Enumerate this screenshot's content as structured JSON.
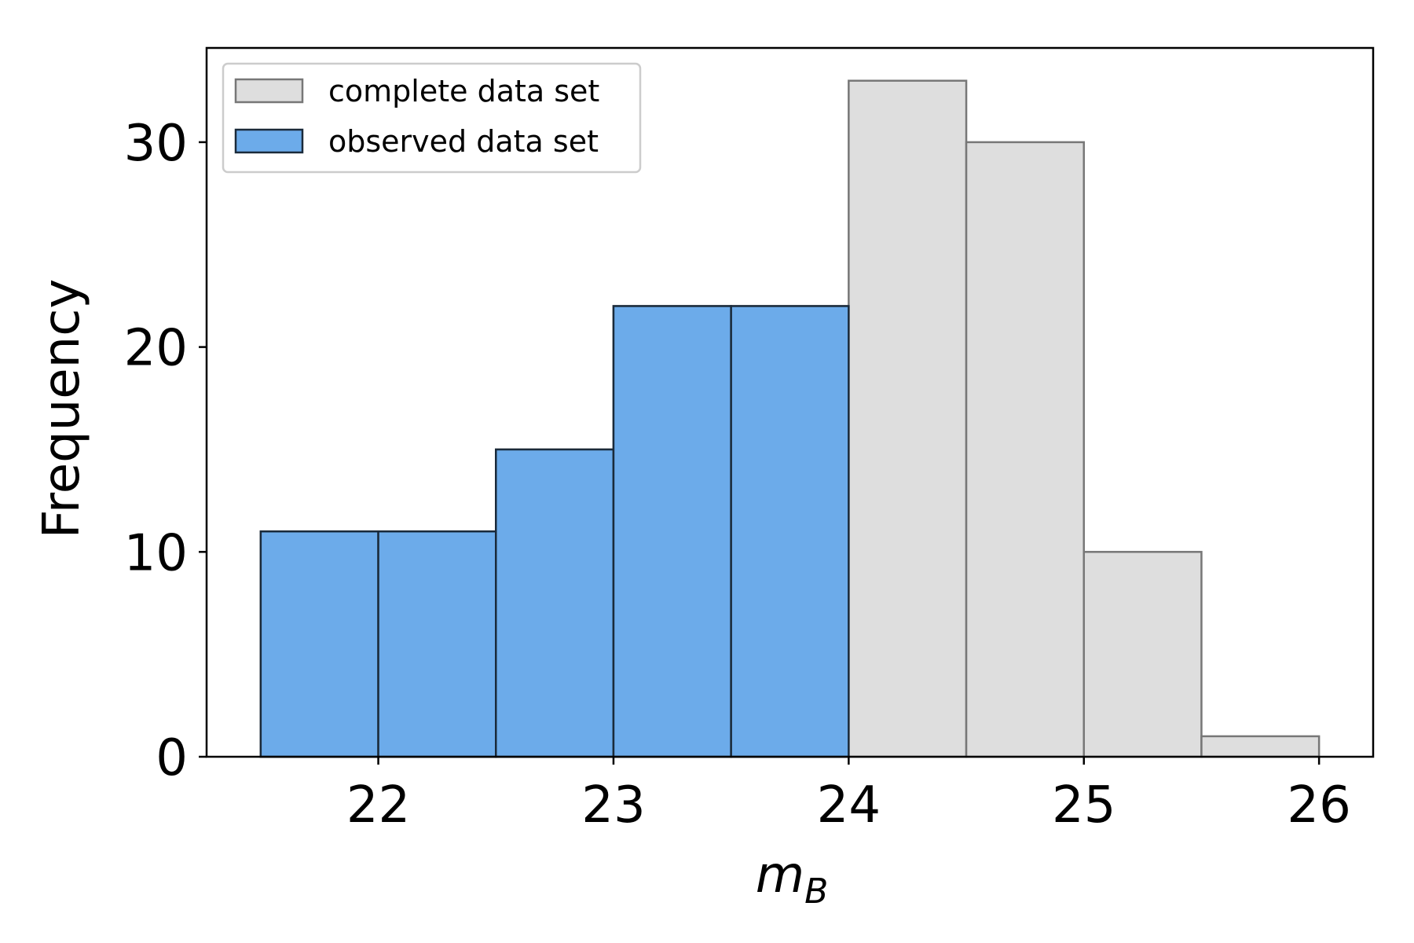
{
  "chart_data": {
    "type": "bar",
    "subtype": "histogram",
    "xlabel": {
      "main": "m",
      "sub": "B"
    },
    "ylabel": "Frequency",
    "xlim": [
      21.27,
      26.23
    ],
    "ylim": [
      0,
      34.6
    ],
    "xticks": [
      22,
      23,
      24,
      25,
      26
    ],
    "yticks": [
      0,
      10,
      20,
      30
    ],
    "grid": false,
    "legend_position": "upper-left",
    "series": [
      {
        "name": "complete data set",
        "color": "#dedede",
        "edgecolor": "#777777",
        "bin_edges": [
          21.5,
          22.0,
          22.5,
          23.0,
          23.5,
          24.0,
          24.5,
          25.0,
          25.5,
          26.0
        ],
        "values": [
          11,
          11,
          15,
          22,
          22,
          33,
          30,
          10,
          1
        ]
      },
      {
        "name": "observed data set",
        "color": "#6cabea",
        "edgecolor": "#1a2a3a",
        "bin_edges": [
          21.5,
          22.0,
          22.5,
          23.0,
          23.5,
          24.0
        ],
        "values": [
          11,
          11,
          15,
          22,
          22
        ]
      }
    ]
  }
}
